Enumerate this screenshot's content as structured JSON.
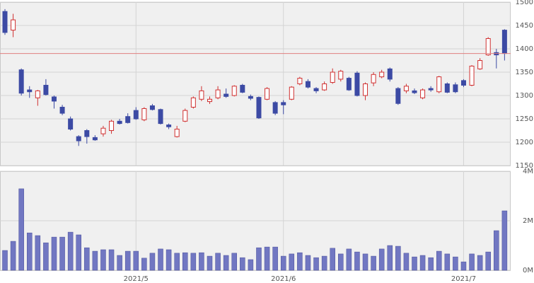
{
  "chart_data": [
    {
      "type": "candlestick",
      "open": [
        1480,
        1440,
        1355,
        1312,
        1295,
        1322,
        1297,
        1275,
        1250,
        1212,
        1225,
        1210,
        1218,
        1225,
        1245,
        1255,
        1268,
        1248,
        1278,
        1270,
        1237,
        1212,
        1245,
        1275,
        1292,
        1287,
        1295,
        1303,
        1300,
        1322,
        1298,
        1296,
        1292,
        1285,
        1285,
        1292,
        1325,
        1330,
        1315,
        1312,
        1328,
        1335,
        1337,
        1348,
        1300,
        1327,
        1340,
        1357,
        1315,
        1310,
        1310,
        1295,
        1315,
        1308,
        1325,
        1323,
        1332,
        1322,
        1357,
        1387,
        1392,
        1440
      ],
      "high": [
        1485,
        1475,
        1358,
        1320,
        1312,
        1335,
        1300,
        1280,
        1255,
        1215,
        1228,
        1215,
        1235,
        1248,
        1250,
        1262,
        1275,
        1275,
        1282,
        1272,
        1240,
        1235,
        1272,
        1298,
        1320,
        1298,
        1320,
        1315,
        1322,
        1325,
        1302,
        1298,
        1318,
        1288,
        1290,
        1320,
        1340,
        1335,
        1318,
        1330,
        1358,
        1355,
        1340,
        1352,
        1328,
        1350,
        1355,
        1360,
        1318,
        1325,
        1315,
        1315,
        1320,
        1342,
        1328,
        1328,
        1335,
        1365,
        1380,
        1425,
        1400,
        1442
      ],
      "low": [
        1430,
        1425,
        1300,
        1295,
        1278,
        1300,
        1272,
        1258,
        1225,
        1192,
        1197,
        1203,
        1212,
        1218,
        1238,
        1240,
        1248,
        1245,
        1268,
        1238,
        1228,
        1210,
        1243,
        1272,
        1288,
        1282,
        1292,
        1295,
        1298,
        1305,
        1290,
        1250,
        1290,
        1258,
        1260,
        1290,
        1322,
        1315,
        1305,
        1310,
        1325,
        1330,
        1310,
        1298,
        1290,
        1320,
        1337,
        1330,
        1280,
        1305,
        1303,
        1292,
        1308,
        1305,
        1305,
        1305,
        1318,
        1320,
        1355,
        1385,
        1358,
        1375
      ],
      "close": [
        1435,
        1462,
        1305,
        1308,
        1310,
        1302,
        1288,
        1262,
        1228,
        1203,
        1212,
        1205,
        1230,
        1245,
        1240,
        1242,
        1250,
        1272,
        1270,
        1240,
        1233,
        1228,
        1268,
        1295,
        1310,
        1292,
        1312,
        1298,
        1320,
        1307,
        1294,
        1252,
        1315,
        1262,
        1280,
        1318,
        1337,
        1318,
        1310,
        1325,
        1350,
        1352,
        1312,
        1300,
        1325,
        1345,
        1350,
        1335,
        1283,
        1320,
        1306,
        1312,
        1312,
        1340,
        1307,
        1308,
        1322,
        1363,
        1375,
        1422,
        1387,
        1390
      ],
      "up_color": "#d03030",
      "down_color": "#3c4aa4",
      "reference_line": 1390,
      "reference_color": "#e08080",
      "ylim": [
        1150,
        1500
      ],
      "yticks": [
        1150,
        1200,
        1250,
        1300,
        1350,
        1400,
        1450,
        1500
      ],
      "grid": true
    },
    {
      "type": "bar",
      "categories": [
        null,
        null,
        null,
        null,
        null,
        null,
        null,
        null,
        null,
        null,
        null,
        null,
        null,
        null,
        null,
        null,
        "2021/5",
        null,
        null,
        null,
        null,
        null,
        null,
        null,
        null,
        null,
        null,
        null,
        null,
        null,
        null,
        null,
        null,
        null,
        "2021/6",
        null,
        null,
        null,
        null,
        null,
        null,
        null,
        null,
        null,
        null,
        null,
        null,
        null,
        null,
        null,
        null,
        null,
        null,
        null,
        null,
        null,
        "2021/7",
        null,
        null,
        null,
        null,
        null
      ],
      "values": [
        0.8,
        1.17,
        3.29,
        1.51,
        1.4,
        1.11,
        1.34,
        1.34,
        1.54,
        1.43,
        0.91,
        0.77,
        0.83,
        0.83,
        0.6,
        0.77,
        0.77,
        0.49,
        0.69,
        0.86,
        0.83,
        0.69,
        0.71,
        0.69,
        0.71,
        0.57,
        0.69,
        0.6,
        0.69,
        0.51,
        0.43,
        0.91,
        0.94,
        0.94,
        0.57,
        0.66,
        0.71,
        0.6,
        0.51,
        0.57,
        0.89,
        0.66,
        0.86,
        0.74,
        0.66,
        0.57,
        0.86,
        1.0,
        0.97,
        0.69,
        0.54,
        0.6,
        0.51,
        0.77,
        0.66,
        0.54,
        0.34,
        0.66,
        0.6,
        0.74,
        1.6,
        2.4
      ],
      "color": "#7177c2",
      "ylim": [
        0,
        4
      ],
      "yticks": [
        {
          "value": 0,
          "label": "0M"
        },
        {
          "value": 2,
          "label": "2M"
        },
        {
          "value": 4,
          "label": "4M"
        }
      ],
      "grid": true
    }
  ]
}
